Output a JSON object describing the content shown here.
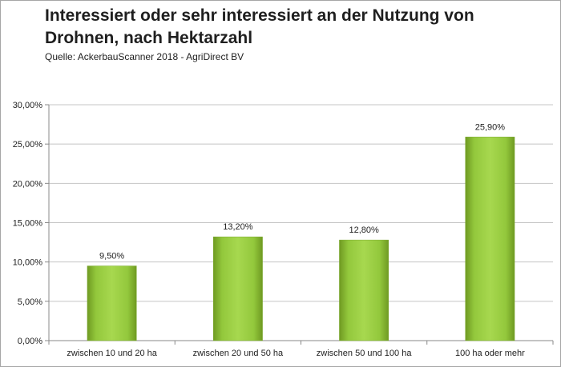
{
  "chart_data": {
    "type": "bar",
    "title": "Interessiert oder sehr interessiert an der Nutzung von Drohnen, nach Hektarzahl",
    "subtitle": "Quelle: AckerbauScanner 2018 - AgriDirect BV",
    "categories": [
      "zwischen 10 und 20 ha",
      "zwischen 20 und 50 ha",
      "zwischen 50 und 100 ha",
      "100 ha oder mehr"
    ],
    "values": [
      9.5,
      13.2,
      12.8,
      25.9
    ],
    "data_labels": [
      "9,50%",
      "13,20%",
      "12,80%",
      "25,90%"
    ],
    "yticks": [
      0,
      5,
      10,
      15,
      20,
      25,
      30
    ],
    "ytick_labels": [
      "0,00%",
      "5,00%",
      "10,00%",
      "15,00%",
      "20,00%",
      "25,00%",
      "30,00%"
    ],
    "ylim": [
      0,
      30
    ],
    "xlabel": "",
    "ylabel": "",
    "grid": "horizontal",
    "legend": "none",
    "bar_color": "#92c83e"
  }
}
